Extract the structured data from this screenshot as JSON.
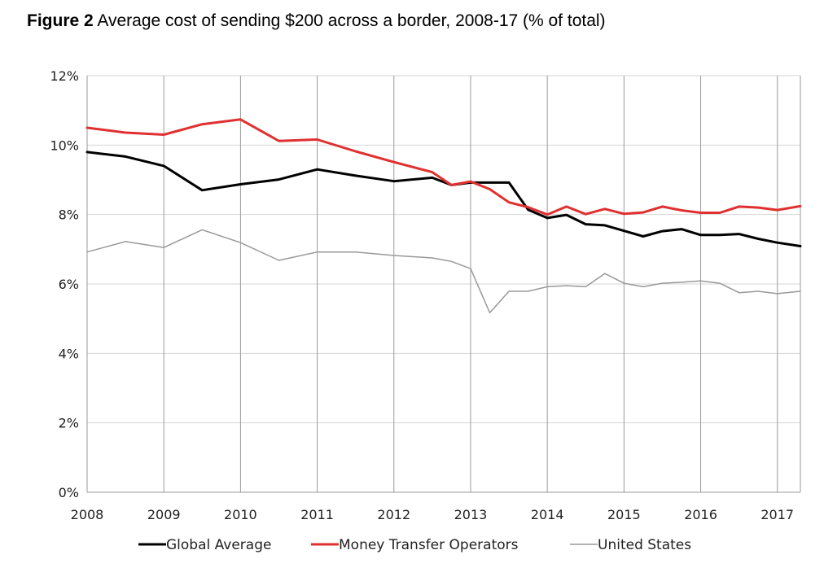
{
  "figure": {
    "label": "Figure 2",
    "title": "Average cost of sending $200 across a border, 2008-17 (% of total)"
  },
  "chart_data": {
    "type": "line",
    "title": "Average cost of sending $200 across a border, 2008-17 (% of total)",
    "xlabel": "",
    "ylabel": "",
    "x_tick_labels": [
      "2008",
      "2009",
      "2010",
      "2011",
      "2012",
      "2013",
      "2014",
      "2015",
      "2016",
      "2017"
    ],
    "y_tick_labels": [
      "0%",
      "2%",
      "4%",
      "6%",
      "8%",
      "10%",
      "12%"
    ],
    "ylim": [
      0,
      12
    ],
    "xlim": [
      2008,
      2017.3
    ],
    "grid": {
      "horizontal": true,
      "vertical": true
    },
    "legend_position": "bottom",
    "series": [
      {
        "name": "Global Average",
        "color": "#000000",
        "x": [
          2008.0,
          2008.5,
          2009.0,
          2009.5,
          2010.0,
          2010.5,
          2011.0,
          2011.5,
          2012.0,
          2012.5,
          2012.75,
          2013.0,
          2013.25,
          2013.5,
          2013.75,
          2014.0,
          2014.25,
          2014.5,
          2014.75,
          2015.0,
          2015.25,
          2015.5,
          2015.75,
          2016.0,
          2016.25,
          2016.5,
          2016.75,
          2017.0,
          2017.3
        ],
        "values": [
          9.8,
          9.67,
          9.4,
          8.7,
          8.87,
          9.01,
          9.3,
          9.12,
          8.96,
          9.06,
          8.85,
          8.92,
          8.92,
          8.92,
          8.14,
          7.9,
          7.99,
          7.72,
          7.69,
          7.53,
          7.37,
          7.52,
          7.58,
          7.41,
          7.41,
          7.44,
          7.3,
          7.19,
          7.09
        ]
      },
      {
        "name": "Money Transfer Operators",
        "color": "#e03030",
        "x": [
          2008.0,
          2008.5,
          2009.0,
          2009.5,
          2010.0,
          2010.5,
          2011.0,
          2011.5,
          2012.0,
          2012.5,
          2012.75,
          2013.0,
          2013.25,
          2013.5,
          2013.75,
          2014.0,
          2014.25,
          2014.5,
          2014.75,
          2015.0,
          2015.25,
          2015.5,
          2015.75,
          2016.0,
          2016.25,
          2016.5,
          2016.75,
          2017.0,
          2017.3
        ],
        "values": [
          10.5,
          10.36,
          10.3,
          10.6,
          10.74,
          10.12,
          10.16,
          9.82,
          9.51,
          9.22,
          8.85,
          8.95,
          8.73,
          8.35,
          8.21,
          8.0,
          8.23,
          8.01,
          8.16,
          8.02,
          8.06,
          8.23,
          8.12,
          8.05,
          8.05,
          8.23,
          8.2,
          8.13,
          8.24
        ]
      },
      {
        "name": "United States",
        "color": "#999999",
        "x": [
          2008.0,
          2008.5,
          2009.0,
          2009.5,
          2010.0,
          2010.5,
          2011.0,
          2011.5,
          2012.0,
          2012.5,
          2012.75,
          2013.0,
          2013.25,
          2013.5,
          2013.75,
          2014.0,
          2014.25,
          2014.5,
          2014.75,
          2015.0,
          2015.25,
          2015.5,
          2015.75,
          2016.0,
          2016.25,
          2016.5,
          2016.75,
          2017.0,
          2017.3
        ],
        "values": [
          6.92,
          7.22,
          7.05,
          7.56,
          7.19,
          6.68,
          6.92,
          6.92,
          6.82,
          6.75,
          6.65,
          6.44,
          5.17,
          5.79,
          5.79,
          5.92,
          5.95,
          5.92,
          6.3,
          6.02,
          5.92,
          6.02,
          6.05,
          6.09,
          6.02,
          5.75,
          5.79,
          5.72,
          5.79
        ]
      }
    ]
  }
}
